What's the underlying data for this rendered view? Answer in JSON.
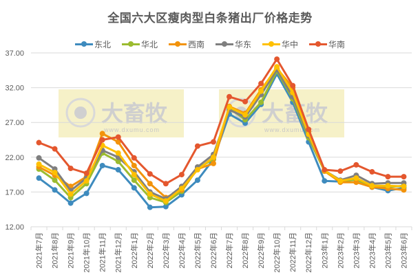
{
  "chart_data": {
    "type": "line",
    "title": "全国六大区瘦肉型白条猪出厂价格走势",
    "xlabel": "",
    "ylabel": "",
    "ylim": [
      12,
      37
    ],
    "yticks": [
      "12.00",
      "17.00",
      "22.00",
      "27.00",
      "32.00",
      "37.00"
    ],
    "grid": true,
    "legend_position": "top",
    "categories": [
      "2021年7月",
      "2021年8月",
      "2021年9月",
      "2021年10月",
      "2021年11月",
      "2021年12月",
      "2022年1月",
      "2022年2月",
      "2022年3月",
      "2022年4月",
      "2022年5月",
      "2022年6月",
      "2022年7月",
      "2022年8月",
      "2022年9月",
      "2022年10月",
      "2022年11月",
      "2022年12月",
      "2023年1月",
      "2023年2月",
      "2023年3月",
      "2023年4月",
      "2023年5月",
      "2023年6月"
    ],
    "series": [
      {
        "name": "东北",
        "color": "#3E8BBE",
        "values": [
          19.0,
          17.3,
          15.4,
          16.8,
          20.8,
          20.2,
          17.6,
          14.8,
          14.9,
          16.6,
          18.7,
          21.7,
          28.2,
          26.9,
          29.6,
          34.0,
          29.9,
          24.2,
          18.6,
          18.5,
          18.8,
          17.7,
          17.2,
          17.6
        ]
      },
      {
        "name": "华北",
        "color": "#9BBB2F",
        "values": [
          20.3,
          18.7,
          16.2,
          18.2,
          22.6,
          21.4,
          18.7,
          16.2,
          15.5,
          17.1,
          20.4,
          21.7,
          29.1,
          27.4,
          29.9,
          34.4,
          30.4,
          24.8,
          20.0,
          18.5,
          18.8,
          17.8,
          17.7,
          17.9
        ]
      },
      {
        "name": "西南",
        "color": "#F2930B",
        "values": [
          20.6,
          19.4,
          17.8,
          19.2,
          25.4,
          24.2,
          20.8,
          18.2,
          16.2,
          17.3,
          20.3,
          21.1,
          29.3,
          28.3,
          31.7,
          34.8,
          32.0,
          25.7,
          20.0,
          18.4,
          18.4,
          17.7,
          17.5,
          17.3
        ]
      },
      {
        "name": "华东",
        "color": "#7F7F7F",
        "values": [
          21.9,
          20.3,
          17.2,
          19.0,
          23.0,
          22.0,
          19.9,
          17.0,
          16.0,
          17.8,
          20.6,
          22.4,
          28.8,
          27.8,
          31.0,
          34.6,
          30.7,
          25.1,
          20.1,
          18.7,
          19.4,
          18.2,
          18.3,
          18.3
        ]
      },
      {
        "name": "华中",
        "color": "#FFC000",
        "values": [
          21.0,
          19.8,
          16.7,
          18.6,
          23.7,
          22.6,
          19.5,
          16.7,
          15.7,
          17.5,
          20.2,
          22.0,
          29.2,
          28.1,
          31.5,
          35.0,
          31.3,
          25.3,
          20.1,
          18.6,
          19.0,
          17.9,
          17.9,
          17.8
        ]
      },
      {
        "name": "华南",
        "color": "#E4572E",
        "values": [
          24.1,
          23.2,
          20.4,
          19.7,
          24.5,
          24.9,
          21.9,
          19.6,
          18.2,
          19.5,
          23.6,
          24.2,
          30.7,
          30.0,
          32.6,
          36.1,
          32.3,
          26.0,
          20.2,
          20.0,
          20.9,
          19.9,
          19.2,
          19.2
        ]
      }
    ]
  },
  "watermark": {
    "brand": "大畜牧",
    "url": "www.dxumu.com"
  }
}
